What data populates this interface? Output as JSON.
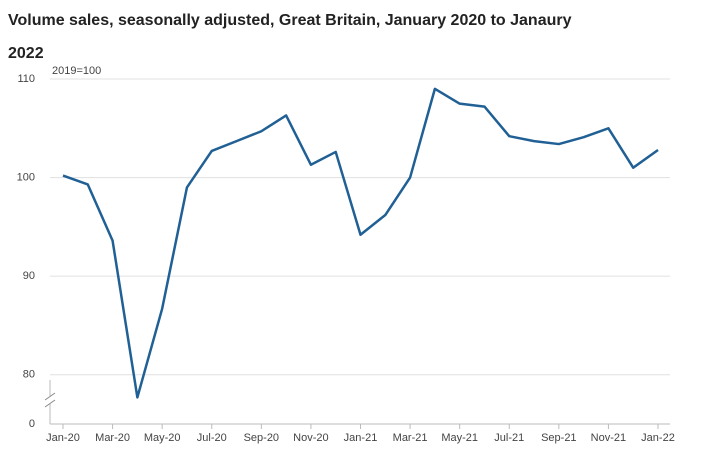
{
  "chart_data": {
    "type": "line",
    "title": "Volume sales, seasonally adjusted, Great Britain, January 2020 to Janaury 2022",
    "y_unit_label": "2019=100",
    "categories": [
      "Jan-20",
      null,
      "Mar-20",
      null,
      "May-20",
      null,
      "Jul-20",
      null,
      "Sep-20",
      null,
      "Nov-20",
      null,
      "Jan-21",
      null,
      "Mar-21",
      null,
      "May-21",
      null,
      "Jul-21",
      null,
      "Sep-21",
      null,
      "Nov-21",
      null,
      "Jan-22"
    ],
    "series": [
      {
        "name": "Volume sales",
        "color": "#206095",
        "values": [
          100.2,
          99.3,
          93.6,
          77.7,
          86.7,
          99.0,
          102.7,
          103.7,
          104.7,
          106.3,
          101.3,
          102.6,
          94.2,
          96.2,
          100.0,
          109.0,
          107.5,
          107.2,
          104.2,
          103.7,
          103.4,
          104.1,
          105.0,
          101.0,
          102.8
        ]
      }
    ],
    "ylim": [
      0,
      110
    ],
    "y_break": [
      0,
      75
    ],
    "yticks": [
      0,
      80,
      90,
      100,
      110
    ],
    "grid": true
  }
}
